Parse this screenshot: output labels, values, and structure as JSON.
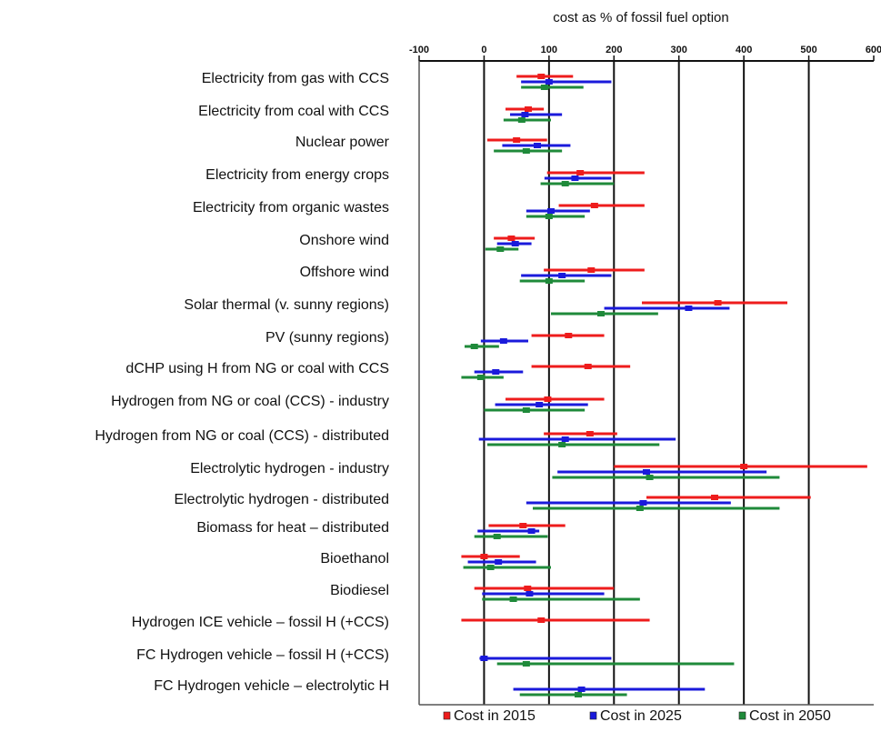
{
  "chart_data": {
    "type": "range-bar",
    "title": "cost as % of fossil fuel option",
    "xlim": [
      -100,
      600
    ],
    "x_ticks": [
      -100,
      0,
      100,
      200,
      300,
      400,
      500,
      600
    ],
    "x_tick_labels": [
      "-100",
      "0",
      "100",
      "200",
      "300",
      "400",
      "500",
      "600"
    ],
    "grid": "vertical lines at 0, 100, 200, 300, 400, 500",
    "legend_position": "bottom",
    "series": [
      {
        "key": "2015",
        "name": "Cost in 2015",
        "color": "#ee1c1c"
      },
      {
        "key": "2025",
        "name": "Cost in 2025",
        "color": "#1a1adb"
      },
      {
        "key": "2050",
        "name": "Cost in 2050",
        "color": "#1f8a3a"
      }
    ],
    "categories": [
      {
        "label": "Electricity from gas with CCS",
        "ranges": [
          {
            "series": "2015",
            "low": 50,
            "mid": 88,
            "high": 137
          },
          {
            "series": "2025",
            "low": 57,
            "mid": 100,
            "high": 196
          },
          {
            "series": "2050",
            "low": 57,
            "mid": 93,
            "high": 153
          }
        ]
      },
      {
        "label": "Electricity from coal with CCS",
        "ranges": [
          {
            "series": "2015",
            "low": 33,
            "mid": 68,
            "high": 92
          },
          {
            "series": "2025",
            "low": 40,
            "mid": 63,
            "high": 120
          },
          {
            "series": "2050",
            "low": 30,
            "mid": 58,
            "high": 103
          }
        ]
      },
      {
        "label": "Nuclear power",
        "ranges": [
          {
            "series": "2015",
            "low": 5,
            "mid": 50,
            "high": 97
          },
          {
            "series": "2025",
            "low": 28,
            "mid": 82,
            "high": 133
          },
          {
            "series": "2050",
            "low": 15,
            "mid": 65,
            "high": 120
          }
        ]
      },
      {
        "label": "Electricity from energy crops",
        "ranges": [
          {
            "series": "2015",
            "low": 97,
            "mid": 148,
            "high": 247
          },
          {
            "series": "2025",
            "low": 93,
            "mid": 140,
            "high": 196
          },
          {
            "series": "2050",
            "low": 87,
            "mid": 125,
            "high": 200
          }
        ]
      },
      {
        "label": "Electricity from organic wastes",
        "ranges": [
          {
            "series": "2015",
            "low": 115,
            "mid": 170,
            "high": 247
          },
          {
            "series": "2025",
            "low": 65,
            "mid": 103,
            "high": 163
          },
          {
            "series": "2050",
            "low": 65,
            "mid": 100,
            "high": 155
          }
        ]
      },
      {
        "label": "Onshore wind",
        "ranges": [
          {
            "series": "2015",
            "low": 15,
            "mid": 42,
            "high": 78
          },
          {
            "series": "2025",
            "low": 20,
            "mid": 48,
            "high": 73
          },
          {
            "series": "2050",
            "low": 2,
            "mid": 25,
            "high": 53
          }
        ]
      },
      {
        "label": "Offshore wind",
        "ranges": [
          {
            "series": "2015",
            "low": 92,
            "mid": 165,
            "high": 247
          },
          {
            "series": "2025",
            "low": 57,
            "mid": 120,
            "high": 196
          },
          {
            "series": "2050",
            "low": 55,
            "mid": 100,
            "high": 155
          }
        ]
      },
      {
        "label": "Solar thermal (v. sunny regions)",
        "ranges": [
          {
            "series": "2015",
            "low": 243,
            "mid": 360,
            "high": 467
          },
          {
            "series": "2025",
            "low": 185,
            "mid": 315,
            "high": 378
          },
          {
            "series": "2050",
            "low": 103,
            "mid": 180,
            "high": 268
          }
        ]
      },
      {
        "label": "PV (sunny regions)",
        "ranges": [
          {
            "series": "2015",
            "low": 73,
            "mid": 130,
            "high": 185
          },
          {
            "series": "2025",
            "low": -5,
            "mid": 30,
            "high": 68
          },
          {
            "series": "2050",
            "low": -30,
            "mid": -15,
            "high": 23
          }
        ]
      },
      {
        "label": "dCHP using H from NG or coal with CCS",
        "ranges": [
          {
            "series": "2015",
            "low": 73,
            "mid": 160,
            "high": 225
          },
          {
            "series": "2025",
            "low": -15,
            "mid": 18,
            "high": 60
          },
          {
            "series": "2050",
            "low": -35,
            "mid": -5,
            "high": 30
          }
        ]
      },
      {
        "label": "Hydrogen from NG or coal (CCS) - industry",
        "ranges": [
          {
            "series": "2015",
            "low": 33,
            "mid": 98,
            "high": 185
          },
          {
            "series": "2025",
            "low": 17,
            "mid": 85,
            "high": 160
          },
          {
            "series": "2050",
            "low": 0,
            "mid": 65,
            "high": 155
          }
        ]
      },
      {
        "label": "Hydrogen from NG or coal (CCS) - distributed",
        "ranges": [
          {
            "series": "2015",
            "low": 92,
            "mid": 163,
            "high": 205
          },
          {
            "series": "2025",
            "low": -8,
            "mid": 125,
            "high": 295
          },
          {
            "series": "2050",
            "low": 5,
            "mid": 120,
            "high": 270
          }
        ]
      },
      {
        "label": "Electrolytic hydrogen - industry",
        "ranges": [
          {
            "series": "2015",
            "low": 200,
            "mid": 400,
            "high": 590
          },
          {
            "series": "2025",
            "low": 113,
            "mid": 250,
            "high": 435
          },
          {
            "series": "2050",
            "low": 105,
            "mid": 255,
            "high": 455
          }
        ]
      },
      {
        "label": "Electrolytic hydrogen - distributed",
        "ranges": [
          {
            "series": "2015",
            "low": 250,
            "mid": 355,
            "high": 503
          },
          {
            "series": "2025",
            "low": 65,
            "mid": 245,
            "high": 380
          },
          {
            "series": "2050",
            "low": 75,
            "mid": 240,
            "high": 455
          }
        ]
      },
      {
        "label": "Biomass for heat – distributed",
        "ranges": [
          {
            "series": "2015",
            "low": 7,
            "mid": 60,
            "high": 125
          },
          {
            "series": "2025",
            "low": -10,
            "mid": 73,
            "high": 85
          },
          {
            "series": "2050",
            "low": -15,
            "mid": 20,
            "high": 98
          }
        ]
      },
      {
        "label": "Bioethanol",
        "ranges": [
          {
            "series": "2015",
            "low": -35,
            "mid": 0,
            "high": 55
          },
          {
            "series": "2025",
            "low": -25,
            "mid": 22,
            "high": 80
          },
          {
            "series": "2050",
            "low": -32,
            "mid": 10,
            "high": 103
          }
        ]
      },
      {
        "label": "Biodiesel",
        "ranges": [
          {
            "series": "2015",
            "low": -15,
            "mid": 67,
            "high": 200
          },
          {
            "series": "2025",
            "low": -3,
            "mid": 70,
            "high": 185
          },
          {
            "series": "2050",
            "low": -3,
            "mid": 45,
            "high": 240
          }
        ]
      },
      {
        "label": "Hydrogen ICE vehicle – fossil H (+CCS)",
        "ranges": [
          {
            "series": "2015",
            "low": -35,
            "mid": 88,
            "high": 255
          }
        ]
      },
      {
        "label": "FC Hydrogen vehicle – fossil H (+CCS)",
        "ranges": [
          {
            "series": "2025",
            "low": -7,
            "mid": 0,
            "high": 196
          },
          {
            "series": "2050",
            "low": 20,
            "mid": 65,
            "high": 385
          }
        ]
      },
      {
        "label": "FC Hydrogen vehicle – electrolytic H",
        "ranges": [
          {
            "series": "2025",
            "low": 45,
            "mid": 150,
            "high": 340
          },
          {
            "series": "2050",
            "low": 55,
            "mid": 145,
            "high": 220
          }
        ]
      }
    ]
  }
}
